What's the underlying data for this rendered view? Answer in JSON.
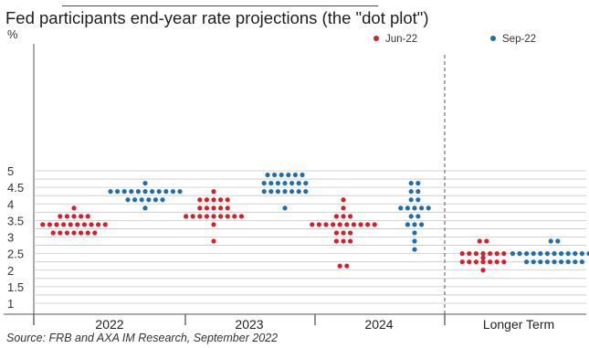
{
  "title": "Fed participants end-year rate projections (the \"dot plot\")",
  "unit_label": "%",
  "source": "Source: FRB and AXA IM Research, September 2022",
  "colors": {
    "jun22": "#d81e2a",
    "sep22": "#1f6fae",
    "grid": "#c8c8c8",
    "axis": "#555555"
  },
  "legend": [
    {
      "label": "Jun-22",
      "color": "#d81e2a"
    },
    {
      "label": "Sep-22",
      "color": "#1f6fae"
    }
  ],
  "chart_data": {
    "type": "scatter",
    "title": "Fed participants end-year rate projections (the \"dot plot\")",
    "ylabel": "%",
    "ylim": [
      0.75,
      5.25
    ],
    "yticks": [
      "1",
      "1.5",
      "2",
      "2.5",
      "3",
      "3.5",
      "4",
      "4.5",
      "5"
    ],
    "categories": [
      "2022",
      "2023",
      "2024",
      "Longer Term"
    ],
    "grid": true,
    "legend_position": "top-right",
    "series": [
      {
        "name": "Jun-22",
        "points": [
          {
            "category": "2022",
            "y": 3.875,
            "count": 1
          },
          {
            "category": "2022",
            "y": 3.625,
            "count": 5
          },
          {
            "category": "2022",
            "y": 3.375,
            "count": 10
          },
          {
            "category": "2022",
            "y": 3.125,
            "count": 7
          },
          {
            "category": "2023",
            "y": 4.375,
            "count": 1
          },
          {
            "category": "2023",
            "y": 4.125,
            "count": 5
          },
          {
            "category": "2023",
            "y": 3.875,
            "count": 5
          },
          {
            "category": "2023",
            "y": 3.625,
            "count": 9
          },
          {
            "category": "2023",
            "y": 3.375,
            "count": 1
          },
          {
            "category": "2023",
            "y": 2.875,
            "count": 1
          },
          {
            "category": "2024",
            "y": 4.125,
            "count": 1
          },
          {
            "category": "2024",
            "y": 3.875,
            "count": 1
          },
          {
            "category": "2024",
            "y": 3.625,
            "count": 3
          },
          {
            "category": "2024",
            "y": 3.375,
            "count": 10
          },
          {
            "category": "2024",
            "y": 3.125,
            "count": 3
          },
          {
            "category": "2024",
            "y": 2.875,
            "count": 3
          },
          {
            "category": "2024",
            "y": 2.125,
            "count": 2
          },
          {
            "category": "Longer Term",
            "y": 2.875,
            "count": 2
          },
          {
            "category": "Longer Term",
            "y": 2.5,
            "count": 7
          },
          {
            "category": "Longer Term",
            "y": 2.375,
            "count": 1
          },
          {
            "category": "Longer Term",
            "y": 2.25,
            "count": 7
          },
          {
            "category": "Longer Term",
            "y": 2.0,
            "count": 1
          }
        ]
      },
      {
        "name": "Sep-22",
        "points": [
          {
            "category": "2022",
            "y": 4.625,
            "count": 1
          },
          {
            "category": "2022",
            "y": 4.375,
            "count": 11
          },
          {
            "category": "2022",
            "y": 4.125,
            "count": 6
          },
          {
            "category": "2022",
            "y": 3.875,
            "count": 1
          },
          {
            "category": "2023",
            "y": 4.875,
            "count": 6
          },
          {
            "category": "2023",
            "y": 4.625,
            "count": 7
          },
          {
            "category": "2023",
            "y": 4.375,
            "count": 7
          },
          {
            "category": "2023",
            "y": 3.875,
            "count": 1
          },
          {
            "category": "2024",
            "y": 4.625,
            "count": 2
          },
          {
            "category": "2024",
            "y": 4.375,
            "count": 2
          },
          {
            "category": "2024",
            "y": 4.125,
            "count": 2
          },
          {
            "category": "2024",
            "y": 3.875,
            "count": 5
          },
          {
            "category": "2024",
            "y": 3.625,
            "count": 2
          },
          {
            "category": "2024",
            "y": 3.375,
            "count": 3
          },
          {
            "category": "2024",
            "y": 3.125,
            "count": 1
          },
          {
            "category": "2024",
            "y": 2.875,
            "count": 1
          },
          {
            "category": "2024",
            "y": 2.625,
            "count": 1
          },
          {
            "category": "Longer Term",
            "y": 2.875,
            "count": 2
          },
          {
            "category": "Longer Term",
            "y": 2.5,
            "count": 13
          },
          {
            "category": "Longer Term",
            "y": 2.25,
            "count": 9
          }
        ]
      }
    ]
  }
}
